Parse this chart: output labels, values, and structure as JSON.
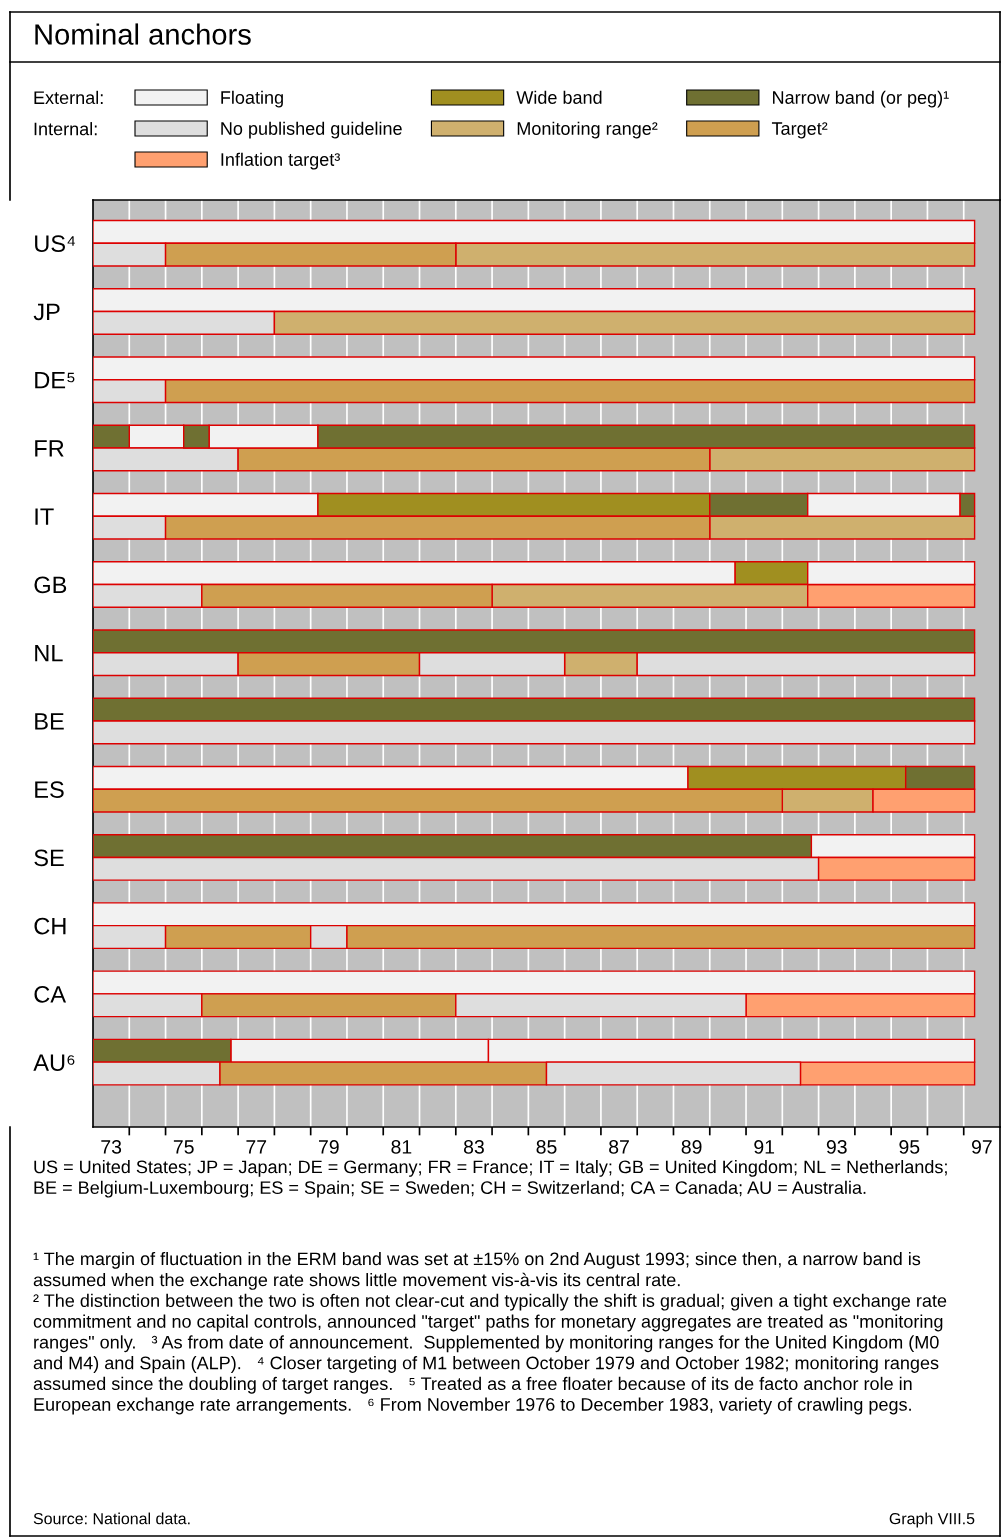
{
  "chart_data": {
    "type": "bar",
    "orientation": "horizontal",
    "title": "Nominal anchors",
    "categories": [
      "US⁴",
      null,
      null,
      "JP",
      null,
      null,
      "DE⁵",
      null,
      null,
      "FR",
      null,
      null,
      "IT",
      null,
      null,
      "GB",
      null,
      null,
      "NL",
      null,
      null,
      "BE",
      null,
      null,
      "ES",
      null,
      null,
      "SE",
      null,
      null,
      "CH",
      null,
      null,
      "CA",
      null,
      null,
      "AU⁶",
      null,
      null
    ],
    "series": [
      {
        "name": "Floating",
        "color": "#f2f2f2",
        "values": [
          24.3,
          null,
          null,
          24.3,
          null,
          null,
          24.3,
          null,
          null,
          1.5,
          null,
          null,
          6.2,
          null,
          null,
          17.7,
          null,
          null,
          null,
          null,
          null,
          null,
          null,
          null,
          16.4,
          null,
          null,
          4.5,
          null,
          null,
          24.3,
          null,
          null,
          24.3,
          null,
          null,
          7.1,
          null,
          null
        ],
        "base": [
          73,
          null,
          null,
          73,
          null,
          null,
          73,
          null,
          null,
          74,
          null,
          null,
          73,
          null,
          null,
          73,
          null,
          null,
          null,
          null,
          null,
          null,
          null,
          null,
          73,
          null,
          null,
          92.8,
          null,
          null,
          73,
          null,
          null,
          73,
          null,
          null,
          76.8,
          null,
          null
        ]
      },
      {
        "name": "Wide band",
        "color": "#a08f20",
        "values": [
          null,
          null,
          null,
          null,
          null,
          null,
          null,
          null,
          null,
          null,
          null,
          null,
          10.8,
          null,
          null,
          2.0,
          null,
          null,
          null,
          null,
          null,
          null,
          null,
          null,
          6.0,
          null,
          null,
          null,
          null,
          null,
          null,
          null,
          null,
          null,
          null,
          null,
          null,
          null,
          null
        ],
        "base": [
          null,
          null,
          null,
          null,
          null,
          null,
          null,
          null,
          null,
          null,
          null,
          null,
          79.2,
          null,
          null,
          90.7,
          null,
          null,
          null,
          null,
          null,
          null,
          null,
          null,
          89.4,
          null,
          null,
          null,
          null,
          null,
          null,
          null,
          null,
          null,
          null,
          null,
          null,
          null,
          null
        ]
      },
      {
        "name": "Narrow band (or peg)¹",
        "color": "#6f7032",
        "values": [
          null,
          null,
          null,
          null,
          null,
          null,
          null,
          null,
          null,
          1.0,
          null,
          null,
          2.7,
          null,
          null,
          null,
          null,
          null,
          24.3,
          null,
          null,
          24.3,
          null,
          null,
          1.9,
          null,
          null,
          19.8,
          null,
          null,
          null,
          null,
          null,
          null,
          null,
          null,
          3.8,
          null,
          null
        ],
        "base": [
          null,
          null,
          null,
          null,
          null,
          null,
          null,
          null,
          null,
          73,
          null,
          null,
          90,
          null,
          null,
          null,
          null,
          null,
          73,
          null,
          null,
          73,
          null,
          null,
          95.4,
          null,
          null,
          73,
          null,
          null,
          null,
          null,
          null,
          null,
          null,
          null,
          73,
          null,
          null
        ]
      },
      {
        "name": "No published guideline",
        "color": "#dedede",
        "values": [
          null,
          2,
          null,
          null,
          5,
          null,
          null,
          2,
          null,
          null,
          4,
          null,
          null,
          2,
          null,
          null,
          3,
          null,
          null,
          4,
          null,
          null,
          24.3,
          null,
          null,
          null,
          null,
          null,
          20,
          null,
          null,
          2,
          null,
          null,
          3,
          null,
          null,
          3.5,
          null
        ],
        "base": [
          null,
          73,
          null,
          null,
          73,
          null,
          null,
          73,
          null,
          null,
          73,
          null,
          null,
          73,
          null,
          null,
          73,
          null,
          null,
          73,
          null,
          null,
          73,
          null,
          null,
          null,
          null,
          null,
          73,
          null,
          null,
          73,
          null,
          null,
          73,
          null,
          null,
          73,
          null
        ]
      },
      {
        "name": "Monitoring range²",
        "color": "#cfb06e",
        "values": [
          null,
          14.3,
          null,
          null,
          19.3,
          null,
          null,
          null,
          null,
          null,
          7.3,
          null,
          null,
          7.3,
          null,
          null,
          8.7,
          null,
          null,
          2,
          null,
          null,
          null,
          null,
          null,
          2.5,
          null,
          null,
          null,
          null,
          null,
          null,
          null,
          null,
          null,
          null,
          null,
          null,
          null
        ],
        "base": [
          null,
          83,
          null,
          null,
          78,
          null,
          null,
          null,
          null,
          null,
          90,
          null,
          null,
          90,
          null,
          null,
          84,
          null,
          null,
          86,
          null,
          null,
          null,
          null,
          null,
          92,
          null,
          null,
          null,
          null,
          null,
          null,
          null,
          null,
          null,
          null,
          null,
          null,
          null
        ]
      },
      {
        "name": "Target²",
        "color": "#cf9f50",
        "values": [
          null,
          8,
          null,
          null,
          null,
          null,
          null,
          22.3,
          null,
          null,
          13,
          null,
          null,
          15,
          null,
          null,
          8,
          null,
          null,
          5,
          null,
          null,
          null,
          null,
          null,
          19,
          null,
          null,
          null,
          null,
          null,
          4,
          null,
          null,
          7,
          null,
          null,
          9,
          null
        ],
        "base": [
          null,
          75,
          null,
          null,
          null,
          null,
          null,
          75,
          null,
          null,
          77,
          null,
          null,
          75,
          null,
          null,
          76,
          null,
          null,
          77,
          null,
          null,
          null,
          null,
          null,
          73,
          null,
          null,
          null,
          null,
          null,
          75,
          null,
          null,
          76,
          null,
          null,
          76.5,
          null
        ]
      },
      {
        "name": "Inflation target³",
        "color": "#ffa070",
        "values": [
          null,
          null,
          null,
          null,
          null,
          null,
          null,
          null,
          null,
          null,
          null,
          null,
          null,
          null,
          null,
          null,
          4.6,
          null,
          null,
          null,
          null,
          null,
          null,
          null,
          null,
          2.8,
          null,
          null,
          4.3,
          null,
          null,
          null,
          null,
          null,
          6.3,
          null,
          null,
          4.8,
          null
        ],
        "base": [
          null,
          null,
          null,
          null,
          null,
          null,
          null,
          null,
          null,
          null,
          null,
          null,
          null,
          null,
          null,
          null,
          92.7,
          null,
          null,
          null,
          null,
          null,
          null,
          null,
          null,
          94.5,
          null,
          null,
          93,
          null,
          null,
          null,
          null,
          null,
          91,
          null,
          null,
          92.5,
          null
        ]
      },
      {
        "color": "#f2f2f2",
        "values": [
          null,
          null,
          null,
          null,
          null,
          null,
          null,
          null,
          null,
          3.0,
          null,
          null,
          4.2,
          null,
          null,
          4.6,
          null,
          null,
          null,
          null,
          null,
          null,
          null,
          null,
          null,
          null,
          null,
          null,
          null,
          null,
          null,
          null,
          null,
          null,
          null,
          null,
          13.4,
          null,
          null
        ],
        "base": [
          null,
          null,
          null,
          null,
          null,
          null,
          null,
          null,
          null,
          76.2,
          null,
          null,
          92.7,
          null,
          null,
          92.7,
          null,
          null,
          null,
          null,
          null,
          null,
          null,
          null,
          null,
          null,
          null,
          null,
          null,
          null,
          null,
          null,
          null,
          null,
          null,
          null,
          83.9,
          null,
          null
        ]
      },
      {
        "color": "#6f7032",
        "values": [
          null,
          null,
          null,
          null,
          null,
          null,
          null,
          null,
          null,
          0.7,
          null,
          null,
          0.4,
          null,
          null,
          null,
          null,
          null,
          null,
          null,
          null,
          null,
          null,
          null,
          null,
          null,
          null,
          null,
          null,
          null,
          null,
          null,
          null,
          null,
          null,
          null,
          null,
          null,
          null
        ],
        "base": [
          null,
          null,
          null,
          null,
          null,
          null,
          null,
          null,
          null,
          75.5,
          null,
          null,
          96.9,
          null,
          null,
          null,
          null,
          null,
          null,
          null,
          null,
          null,
          null,
          null,
          null,
          null,
          null,
          null,
          null,
          null,
          null,
          null,
          null,
          null,
          null,
          null,
          null,
          null,
          null
        ]
      },
      {
        "color": "#6f7032",
        "values": [
          null,
          null,
          null,
          null,
          null,
          null,
          null,
          null,
          null,
          18.1,
          null,
          null,
          null,
          null,
          null,
          null,
          null,
          null,
          null,
          null,
          null,
          null,
          null,
          null,
          null,
          null,
          null,
          null,
          null,
          null,
          null,
          null,
          null,
          null,
          null,
          null,
          null,
          null,
          null
        ],
        "base": [
          null,
          null,
          null,
          null,
          null,
          null,
          null,
          null,
          null,
          79.2,
          null,
          null,
          null,
          null,
          null,
          null,
          null,
          null,
          null,
          null,
          null,
          null,
          null,
          null,
          null,
          null,
          null,
          null,
          null,
          null,
          null,
          null,
          null,
          null,
          null,
          null,
          null,
          null,
          null
        ]
      },
      {
        "color": "#dedede",
        "values": [
          null,
          null,
          null,
          null,
          null,
          null,
          null,
          null,
          null,
          null,
          null,
          null,
          null,
          null,
          null,
          null,
          null,
          null,
          null,
          4,
          null,
          null,
          null,
          null,
          null,
          null,
          null,
          null,
          null,
          null,
          null,
          1,
          null,
          null,
          8,
          null,
          null,
          7,
          null
        ],
        "base": [
          null,
          null,
          null,
          null,
          null,
          null,
          null,
          null,
          null,
          null,
          null,
          null,
          null,
          null,
          null,
          null,
          null,
          null,
          null,
          82,
          null,
          null,
          null,
          null,
          null,
          null,
          null,
          null,
          null,
          null,
          null,
          79,
          null,
          null,
          83,
          null,
          null,
          85.5,
          null
        ]
      },
      {
        "color": "#dedede",
        "values": [
          null,
          null,
          null,
          null,
          null,
          null,
          null,
          null,
          null,
          null,
          null,
          null,
          null,
          null,
          null,
          null,
          null,
          null,
          null,
          9.3,
          null,
          null,
          null,
          null,
          null,
          null,
          null,
          null,
          null,
          null,
          null,
          null,
          null,
          null,
          null,
          null,
          null,
          null,
          null
        ],
        "base": [
          null,
          null,
          null,
          null,
          null,
          null,
          null,
          null,
          null,
          null,
          null,
          null,
          null,
          null,
          null,
          null,
          null,
          null,
          null,
          88,
          null,
          null,
          null,
          null,
          null,
          null,
          null,
          null,
          null,
          null,
          null,
          null,
          null,
          null,
          null,
          null,
          null,
          null,
          null
        ]
      },
      {
        "color": "#cf9f50",
        "values": [
          null,
          null,
          null,
          null,
          null,
          null,
          null,
          null,
          null,
          null,
          null,
          null,
          null,
          null,
          null,
          null,
          null,
          null,
          null,
          null,
          null,
          null,
          null,
          null,
          null,
          null,
          null,
          null,
          null,
          null,
          null,
          17.3,
          null,
          null,
          null,
          null,
          null,
          null,
          null
        ],
        "base": [
          null,
          null,
          null,
          null,
          null,
          null,
          null,
          null,
          null,
          null,
          null,
          null,
          null,
          null,
          null,
          null,
          null,
          null,
          null,
          null,
          null,
          null,
          null,
          null,
          null,
          null,
          null,
          null,
          null,
          null,
          null,
          80,
          null,
          null,
          null,
          null,
          null,
          null,
          null
        ]
      }
    ],
    "xlim": [
      73,
      98
    ],
    "xticks": [
      {
        "value": 73.5,
        "label": "73"
      },
      {
        "value": 74,
        "label": null
      },
      {
        "value": 75,
        "label": null
      },
      {
        "value": 75.5,
        "label": "75"
      },
      {
        "value": 76,
        "label": null
      },
      {
        "value": 77,
        "label": null
      },
      {
        "value": 77.5,
        "label": "77"
      },
      {
        "value": 78,
        "label": null
      },
      {
        "value": 79,
        "label": null
      },
      {
        "value": 79.5,
        "label": "79"
      },
      {
        "value": 80,
        "label": null
      },
      {
        "value": 81,
        "label": null
      },
      {
        "value": 81.5,
        "label": "81"
      },
      {
        "value": 82,
        "label": null
      },
      {
        "value": 83,
        "label": null
      },
      {
        "value": 83.5,
        "label": "83"
      },
      {
        "value": 84,
        "label": null
      },
      {
        "value": 85,
        "label": null
      },
      {
        "value": 85.5,
        "label": "85"
      },
      {
        "value": 86,
        "label": null
      },
      {
        "value": 87,
        "label": null
      },
      {
        "value": 87.5,
        "label": "87"
      },
      {
        "value": 88,
        "label": null
      },
      {
        "value": 89,
        "label": null
      },
      {
        "value": 89.5,
        "label": "89"
      },
      {
        "value": 90,
        "label": null
      },
      {
        "value": 91,
        "label": null
      },
      {
        "value": 91.5,
        "label": "91"
      },
      {
        "value": 92,
        "label": null
      },
      {
        "value": 93,
        "label": null
      },
      {
        "value": 93.5,
        "label": "93"
      },
      {
        "value": 94,
        "label": null
      },
      {
        "value": 95,
        "label": null
      },
      {
        "value": 95.5,
        "label": "95"
      },
      {
        "value": 96,
        "label": null
      },
      {
        "value": 97,
        "label": null
      },
      {
        "value": 97.5,
        "label": "97"
      }
    ],
    "grid": "x",
    "legend": "top",
    "annotations": [
      "External:",
      "Internal:",
      "US = United States; JP = Japan; DE = Germany; FR = France; IT = Italy; GB = United Kingdom; NL = Netherlands; BE = Belgium-Luxembourg; ES = Spain; SE = Sweden; CH = Switzerland; CA = Canada; AU = Australia.",
      "¹ The margin of fluctuation in the ERM band was set at ±15% on 2nd August 1993; since then, a narrow band is assumed when the exchange rate shows little movement vis-à-vis its central rate.\n² The distinction between the two is often not clear-cut and typically the shift is gradual; given a tight exchange rate commitment and no capital controls, announced \"target\" paths for monetary aggregates are treated as \"monitoring ranges\" only.   ³ As from date of announcement.  Supplemented by monitoring ranges for the United Kingdom (M0 and M4) and Spain (ALP).   ⁴ Closer targeting of M1 between October 1979 and October 1982; monitoring ranges assumed since the doubling of target ranges.   ⁵ Treated as a free floater because of its de facto anchor role in European exchange rate arrangements.   ⁶ From November 1976 to December 1983, variety of crawling pegs.",
      "Source: National data.",
      "Graph VIII.5"
    ]
  }
}
